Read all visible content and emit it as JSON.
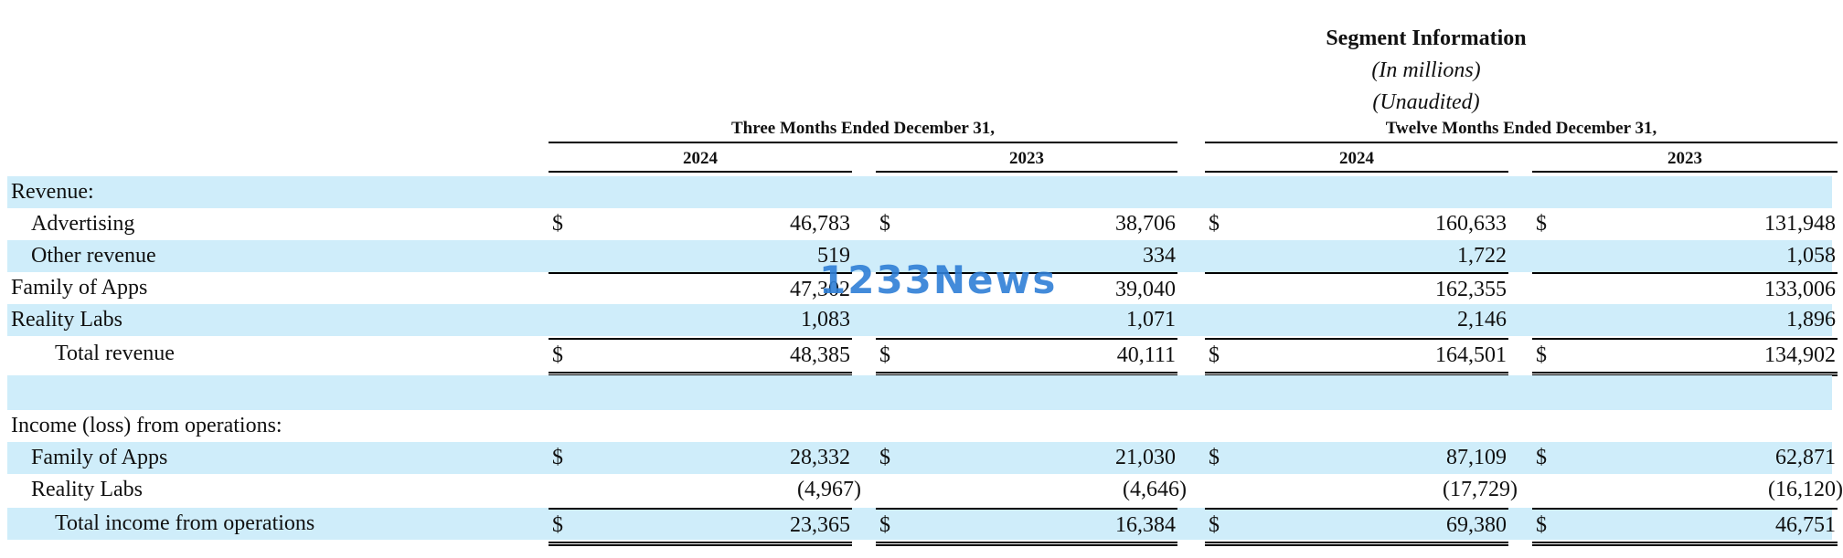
{
  "title": "Segment Information",
  "subtitle1": "(In millions)",
  "subtitle2": "(Unaudited)",
  "periods": [
    "Three Months Ended December 31,",
    "Twelve Months Ended December 31,"
  ],
  "years": [
    "2024",
    "2023",
    "2024",
    "2023"
  ],
  "rows": {
    "revenue_header": "Revenue:",
    "advertising": {
      "label": "Advertising",
      "values": [
        "46,783",
        "38,706",
        "160,633",
        "131,948"
      ]
    },
    "other_revenue": {
      "label": "Other revenue",
      "values": [
        "519",
        "334",
        "1,722",
        "1,058"
      ]
    },
    "family_of_apps_rev": {
      "label": "Family of Apps",
      "values": [
        "47,302",
        "39,040",
        "162,355",
        "133,006"
      ]
    },
    "reality_labs_rev": {
      "label": "Reality Labs",
      "values": [
        "1,083",
        "1,071",
        "2,146",
        "1,896"
      ]
    },
    "total_revenue": {
      "label": "Total revenue",
      "values": [
        "48,385",
        "40,111",
        "164,501",
        "134,902"
      ]
    },
    "income_header": "Income (loss) from operations:",
    "family_of_apps_inc": {
      "label": "Family of Apps",
      "values": [
        "28,332",
        "21,030",
        "87,109",
        "62,871"
      ]
    },
    "reality_labs_inc": {
      "label": "Reality Labs",
      "values": [
        "(4,967)",
        "(4,646)",
        "(17,729)",
        "(16,120)"
      ]
    },
    "total_income": {
      "label": "Total income from operations",
      "values": [
        "23,365",
        "16,384",
        "69,380",
        "46,751"
      ]
    }
  },
  "dollar_sign": "$",
  "watermark": "1233News"
}
